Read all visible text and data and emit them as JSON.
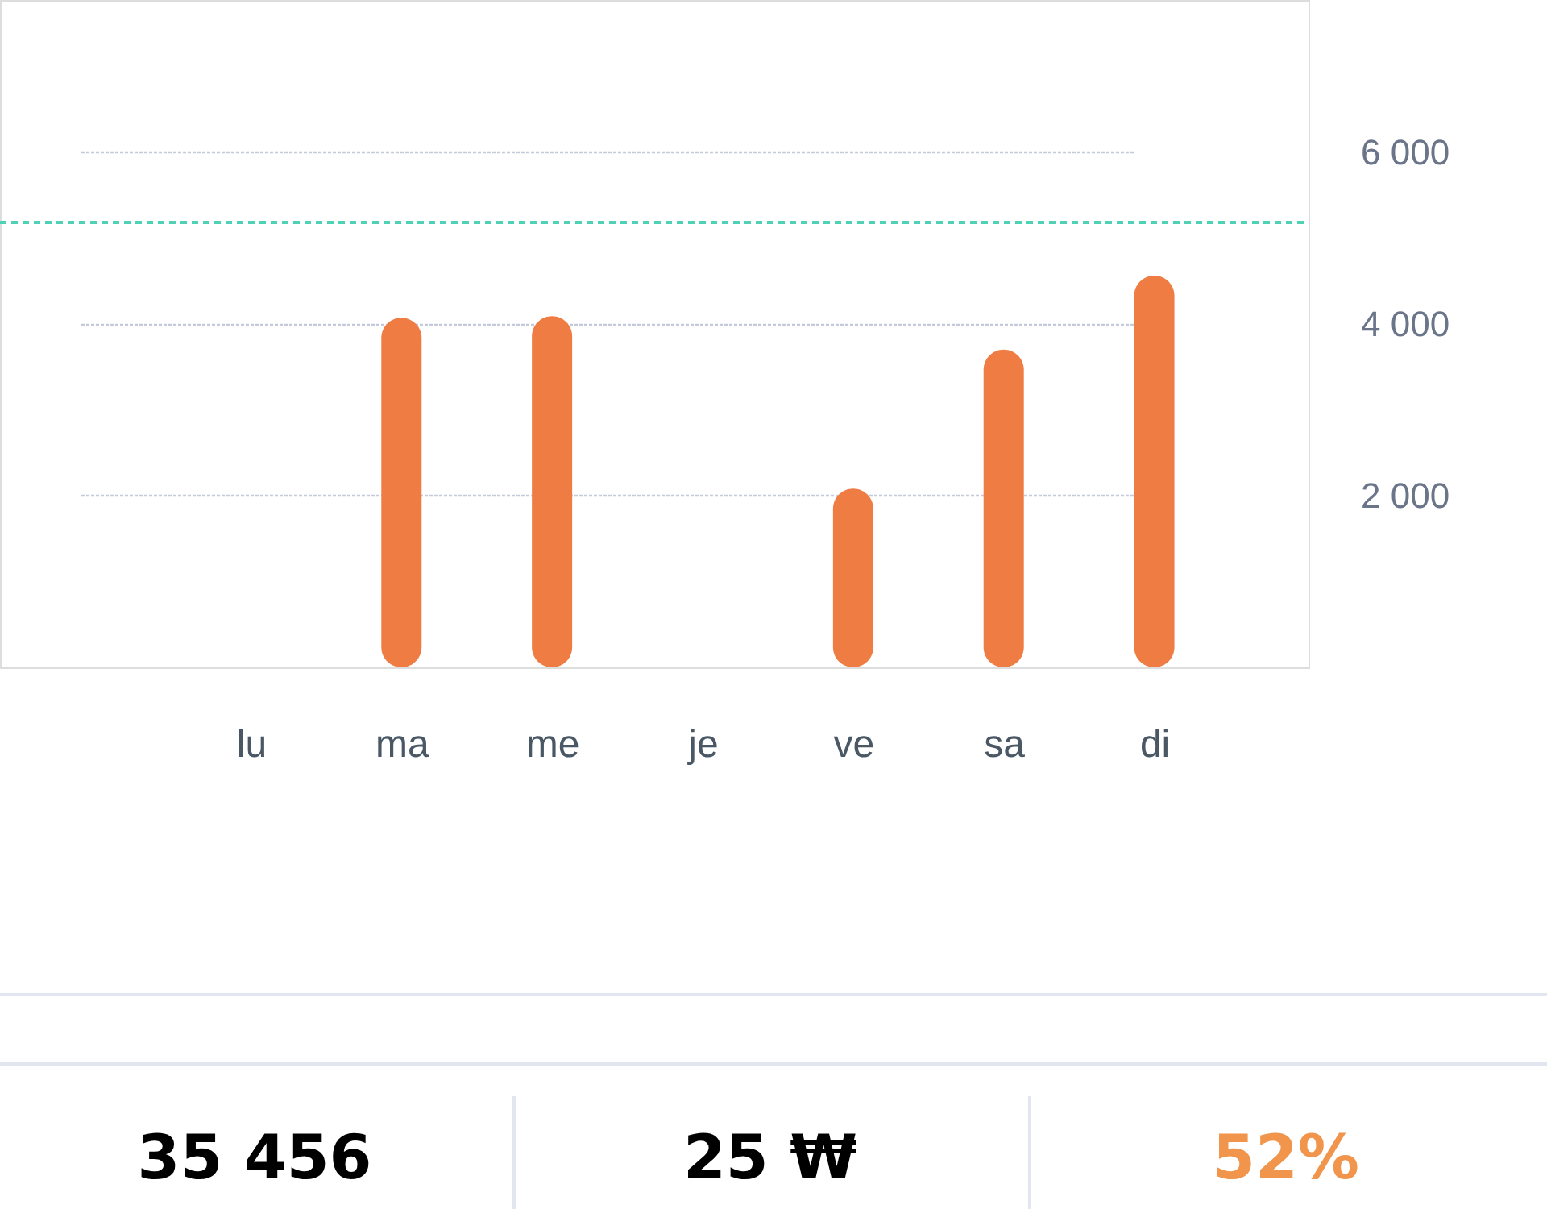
{
  "chart_data": {
    "type": "bar",
    "categories": [
      "lu",
      "ma",
      "me",
      "je",
      "ve",
      "sa",
      "di"
    ],
    "series": [
      {
        "color": "#ef7d43",
        "values": [
          null,
          4070,
          4090,
          null,
          2080,
          3700,
          4560
        ]
      }
    ],
    "ylim": [
      0,
      7770
    ],
    "yticks": [
      {
        "value": 2000,
        "label": "2 000"
      },
      {
        "value": 4000,
        "label": "4 000"
      },
      {
        "value": 6000,
        "label": "6 000"
      }
    ],
    "grid": "y",
    "ref_lines": [
      {
        "axis": "y",
        "value": 5180,
        "color": "#4fd1b5",
        "line_style": "dashed"
      }
    ],
    "annotations": [
      "35 456",
      "25 ₩",
      "52%"
    ]
  }
}
